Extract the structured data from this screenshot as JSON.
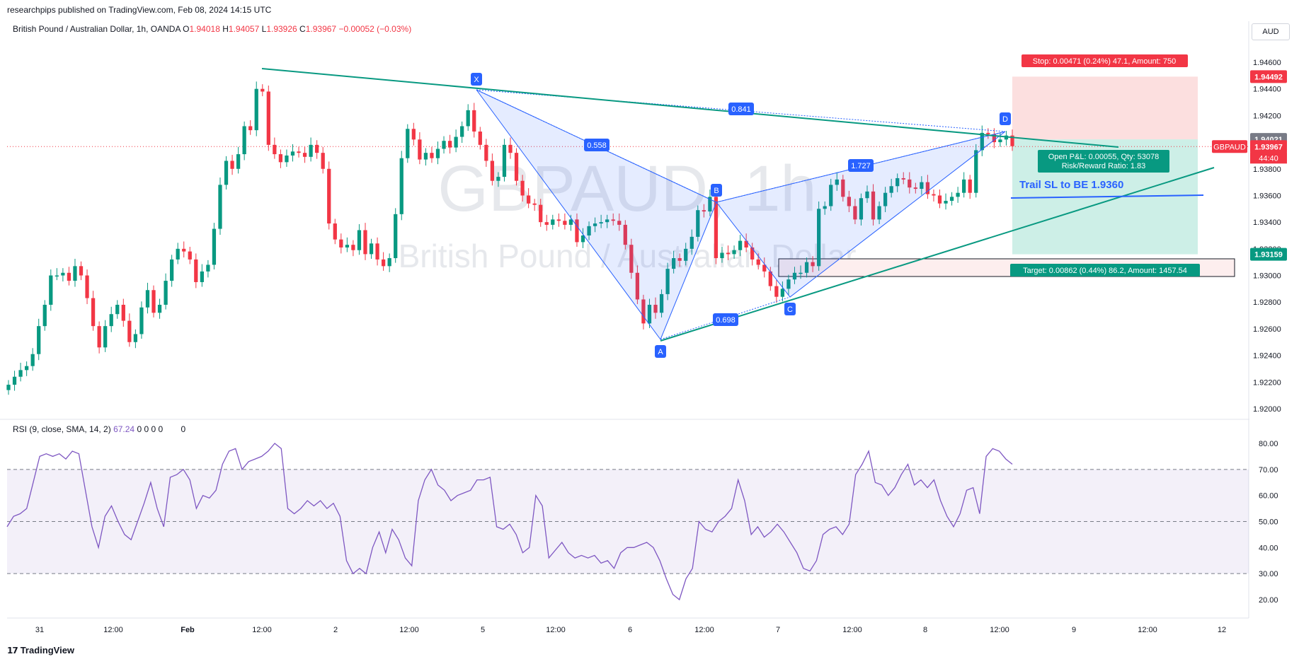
{
  "header": {
    "published": "researchpips published on TradingView.com, Feb 08, 2024 14:15 UTC"
  },
  "symbol": {
    "name": "British Pound / Australian Dollar, 1h, OANDA",
    "open_label": "O",
    "open": "1.94018",
    "high_label": "H",
    "high": "1.94057",
    "low_label": "L",
    "low": "1.93926",
    "close_label": "C",
    "close": "1.93967",
    "change": "−0.00052 (−0.03%)",
    "currency": "AUD",
    "watermark_ticker": "GBPAUD, 1h",
    "watermark_name": "British Pound / Australian Dollar"
  },
  "rsi_legend": {
    "label": "RSI (9, close, SMA, 14, 2)",
    "value": "67.24",
    "extras": "0 0 0 0",
    "extra2": "0"
  },
  "brand": "TradingView",
  "colors": {
    "up": "#089981",
    "down": "#f23645",
    "pattern": "#2962ff",
    "trend": "#089981",
    "rsi": "#7e57c2",
    "stop_zone": "#fcdcdc",
    "target_zone": "#c8ede4"
  },
  "chart_data": [
    {
      "type": "candlestick",
      "title": "British Pound / Australian Dollar, 1h, OANDA",
      "ylim": [
        1.918,
        1.948
      ],
      "y_ticks": [
        "1.94600",
        "1.94400",
        "1.94200",
        "1.94000",
        "1.93800",
        "1.93600",
        "1.93400",
        "1.93200",
        "1.93000",
        "1.92800",
        "1.92600",
        "1.92400",
        "1.92200",
        "1.92000"
      ],
      "x_ticks": [
        "31",
        "12:00",
        "Feb",
        "12:00",
        "2",
        "12:00",
        "5",
        "12:00",
        "6",
        "12:00",
        "7",
        "12:00",
        "8",
        "12:00",
        "9",
        "12:00",
        "12"
      ],
      "price_tags": [
        {
          "value": "1.94492",
          "color": "#f23645"
        },
        {
          "value": "1.94021",
          "color": "#787b86"
        },
        {
          "value": "1.93967",
          "color": "#f23645",
          "extra": "44:40"
        },
        {
          "value": "1.93159",
          "color": "#089981"
        }
      ],
      "symbol_tag": "GBPAUD",
      "close_series": [
        1.9218,
        1.9224,
        1.9229,
        1.9232,
        1.9241,
        1.9262,
        1.9278,
        1.93,
        1.93,
        1.9302,
        1.9296,
        1.9307,
        1.93,
        1.9283,
        1.9262,
        1.9246,
        1.9262,
        1.9271,
        1.9278,
        1.9266,
        1.925,
        1.9256,
        1.9276,
        1.9289,
        1.9272,
        1.9278,
        1.9296,
        1.9312,
        1.932,
        1.9318,
        1.9312,
        1.9295,
        1.9303,
        1.9308,
        1.9335,
        1.9368,
        1.9386,
        1.938,
        1.9391,
        1.9412,
        1.9409,
        1.944,
        1.9438,
        1.9398,
        1.9391,
        1.9385,
        1.939,
        1.9393,
        1.9392,
        1.9389,
        1.9398,
        1.9392,
        1.938,
        1.9339,
        1.9327,
        1.9321,
        1.9323,
        1.9319,
        1.9334,
        1.9316,
        1.9324,
        1.9312,
        1.9307,
        1.9313,
        1.9346,
        1.9388,
        1.941,
        1.9402,
        1.9387,
        1.9392,
        1.9388,
        1.9395,
        1.9401,
        1.9396,
        1.9404,
        1.9412,
        1.9424,
        1.9408,
        1.9398,
        1.9386,
        1.9371,
        1.9374,
        1.9398,
        1.9392,
        1.9371,
        1.936,
        1.9354,
        1.9353,
        1.934,
        1.9338,
        1.9342,
        1.9341,
        1.9338,
        1.9342,
        1.9325,
        1.933,
        1.9337,
        1.9339,
        1.934,
        1.9342,
        1.9341,
        1.9338,
        1.9323,
        1.9302,
        1.9282,
        1.9264,
        1.9278,
        1.9272,
        1.9286,
        1.9305,
        1.9313,
        1.9311,
        1.932,
        1.9329,
        1.9349,
        1.9348,
        1.9359,
        1.9313,
        1.9317,
        1.9316,
        1.9319,
        1.9326,
        1.9321,
        1.9312,
        1.9308,
        1.9303,
        1.9292,
        1.9284,
        1.929,
        1.9297,
        1.9302,
        1.9302,
        1.931,
        1.9307,
        1.935,
        1.9352,
        1.9368,
        1.9372,
        1.9359,
        1.9352,
        1.9342,
        1.9358,
        1.9363,
        1.9342,
        1.9352,
        1.9362,
        1.9367,
        1.9373,
        1.9372,
        1.9366,
        1.9365,
        1.937,
        1.9361,
        1.936,
        1.9354,
        1.9356,
        1.9359,
        1.9362,
        1.9372,
        1.9362,
        1.9394,
        1.9407,
        1.9406,
        1.94,
        1.9402,
        1.9405,
        1.9397
      ],
      "pattern": {
        "labels": [
          "X",
          "A",
          "B",
          "C",
          "D"
        ],
        "ratios": [
          "0.558",
          "0.698",
          "1.727",
          "0.841"
        ],
        "note": "Trail SL to BE 1.9360"
      },
      "position": {
        "stop_text": "Stop: 0.00471 (0.24%) 47.1, Amount: 750",
        "target_text": "Target: 0.00862 (0.44%) 86.2, Amount: 1457.54",
        "pnl_text": "Open P&L: 0.00055, Qty: 53078",
        "rr_text": "Risk/Reward Ratio: 1.83",
        "entry": 1.94021,
        "stop": 1.94492,
        "target": 1.93159
      }
    },
    {
      "type": "line",
      "title": "RSI (9, close, SMA, 14, 2)",
      "ylim": [
        15,
        85
      ],
      "y_ticks": [
        "80.00",
        "70.00",
        "60.00",
        "50.00",
        "40.00",
        "30.00",
        "20.00"
      ],
      "levels": [
        70,
        50,
        30
      ],
      "values": [
        48,
        52,
        53,
        55,
        65,
        75,
        76,
        75,
        76,
        74,
        77,
        76,
        62,
        48,
        40,
        52,
        56,
        50,
        45,
        43,
        50,
        57,
        65,
        55,
        48,
        67,
        68,
        70,
        66,
        55,
        60,
        59,
        62,
        72,
        77,
        78,
        70,
        73,
        74,
        75,
        77,
        80,
        78,
        55,
        53,
        55,
        58,
        56,
        58,
        55,
        57,
        52,
        35,
        30,
        32,
        30,
        40,
        46,
        38,
        47,
        43,
        36,
        33,
        58,
        66,
        70,
        64,
        62,
        58,
        60,
        61,
        62,
        66,
        66,
        67,
        48,
        47,
        49,
        45,
        38,
        40,
        60,
        56,
        36,
        39,
        42,
        38,
        36,
        37,
        36,
        37,
        34,
        35,
        32,
        38,
        40,
        40,
        41,
        42,
        40,
        35,
        28,
        22,
        20,
        28,
        32,
        50,
        47,
        46,
        50,
        52,
        55,
        66,
        58,
        45,
        48,
        44,
        46,
        49,
        46,
        42,
        38,
        32,
        31,
        35,
        45,
        47,
        48,
        45,
        49,
        68,
        72,
        77,
        65,
        64,
        60,
        63,
        68,
        72,
        64,
        66,
        63,
        66,
        58,
        52,
        48,
        53,
        62,
        63,
        53,
        75,
        78,
        77,
        74,
        72
      ]
    }
  ]
}
